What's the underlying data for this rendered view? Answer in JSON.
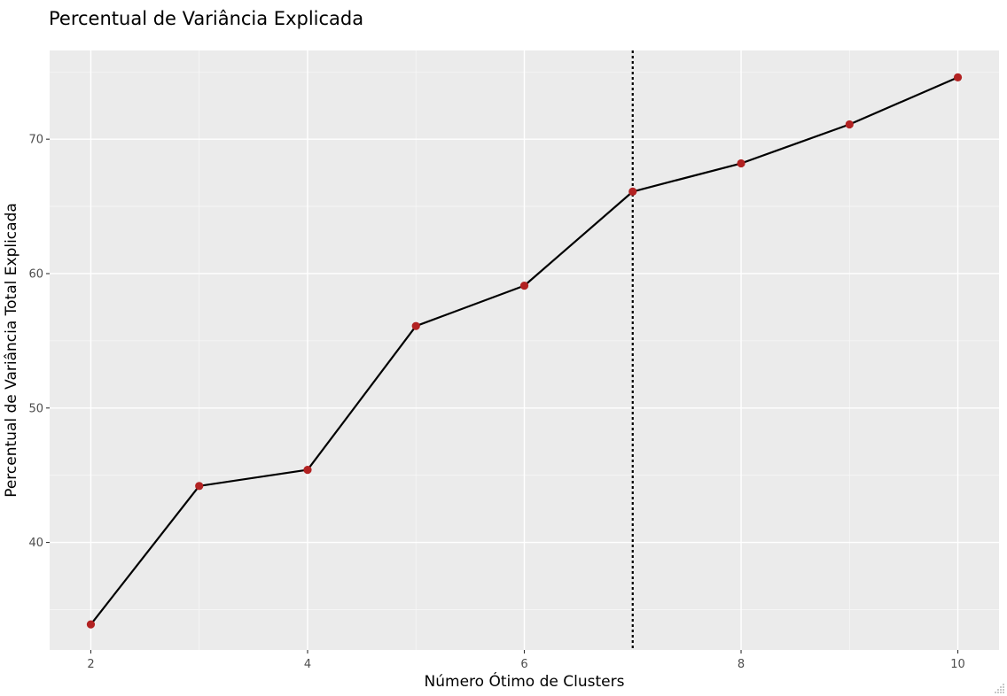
{
  "chart_data": {
    "type": "line",
    "title": "Percentual de Variância Explicada",
    "xlabel": "Número Ótimo de Clusters",
    "ylabel": "Percentual de Variância Total Explicada",
    "x": [
      2,
      3,
      4,
      5,
      6,
      7,
      8,
      9,
      10
    ],
    "series": [
      {
        "values": [
          33.9,
          44.2,
          45.4,
          56.1,
          59.1,
          66.1,
          68.2,
          71.1,
          74.6
        ],
        "line_color": "#000000",
        "point_color": "#b22222"
      }
    ],
    "xlim": [
      1.62,
      10.38
    ],
    "ylim": [
      32.0,
      76.6
    ],
    "x_ticks": [
      2,
      4,
      6,
      8,
      10
    ],
    "y_ticks": [
      40,
      50,
      60,
      70
    ],
    "reference_line": {
      "x": 7,
      "style": "dotted",
      "color": "#000000"
    },
    "panel_background": "#ebebeb",
    "grid": true,
    "legend": "none"
  }
}
